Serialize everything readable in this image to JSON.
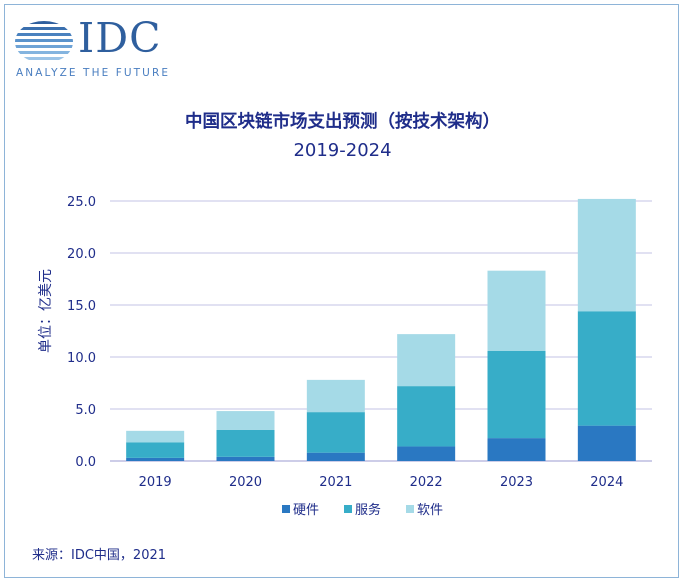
{
  "logo": {
    "name": "IDC",
    "tagline": "ANALYZE THE FUTURE"
  },
  "source": "来源：IDC中国，2021",
  "chart_data": {
    "type": "bar",
    "stacked": true,
    "title": "中国区块链市场支出预测（按技术架构）",
    "subtitle": "2019-2024",
    "ylabel": "单位：亿美元",
    "xlabel": "",
    "ylim": [
      0,
      25
    ],
    "yticks": [
      "0.0",
      "5.0",
      "10.0",
      "15.0",
      "20.0",
      "25.0"
    ],
    "grid": true,
    "legend_position": "bottom",
    "categories": [
      "2019",
      "2020",
      "2021",
      "2022",
      "2023",
      "2024"
    ],
    "series": [
      {
        "name": "硬件",
        "color": "#2a78c2",
        "values": [
          0.3,
          0.4,
          0.8,
          1.4,
          2.2,
          3.4
        ]
      },
      {
        "name": "服务",
        "color": "#37adc8",
        "values": [
          1.5,
          2.6,
          3.9,
          5.8,
          8.4,
          11.0
        ]
      },
      {
        "name": "软件",
        "color": "#a5dae7",
        "values": [
          1.1,
          1.8,
          3.1,
          5.0,
          7.7,
          10.8
        ]
      }
    ]
  }
}
